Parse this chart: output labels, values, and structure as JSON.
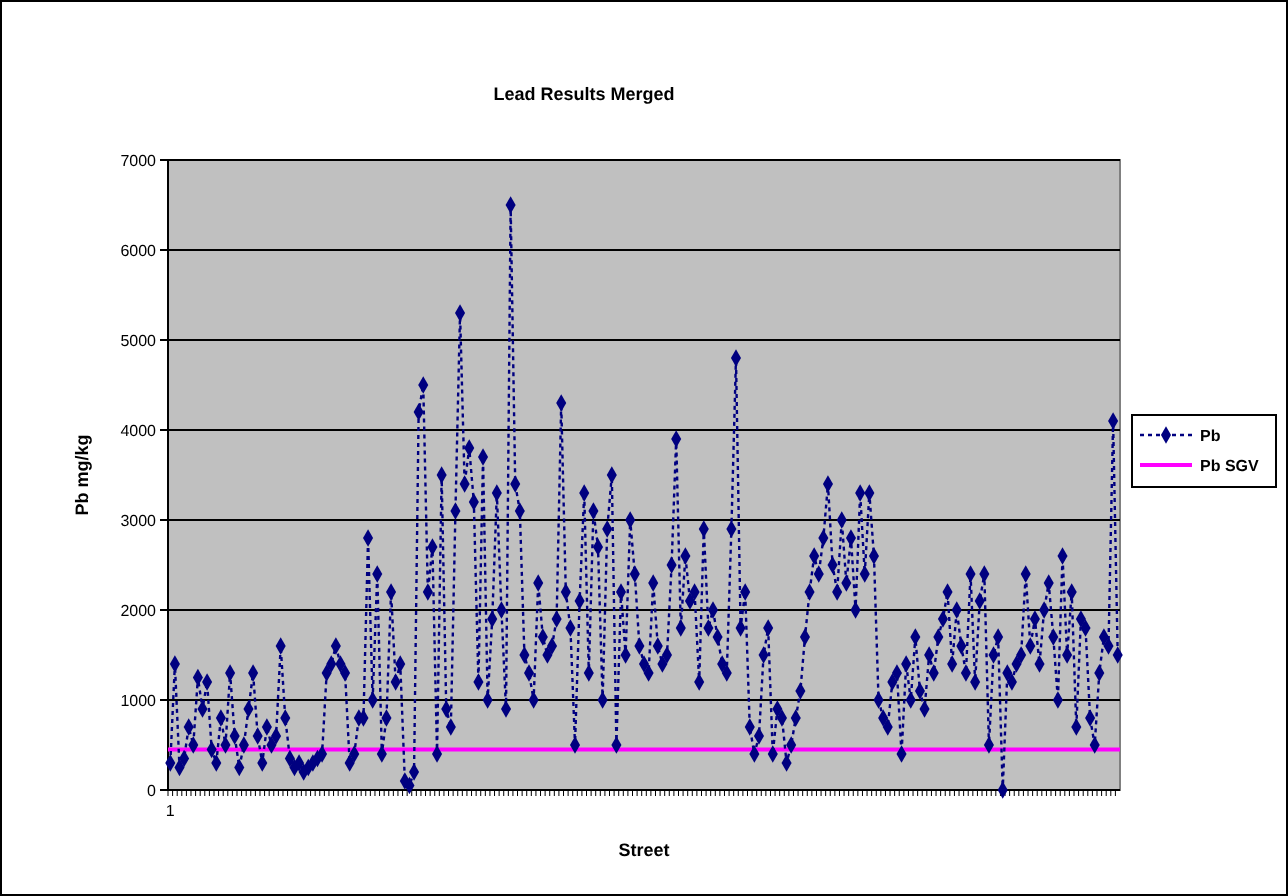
{
  "chart_data": {
    "type": "line",
    "title": "Lead Results Merged",
    "xlabel": "Street",
    "ylabel": "Pb mg/kg",
    "ylim": [
      0,
      7000
    ],
    "yticks": [
      0,
      1000,
      2000,
      3000,
      4000,
      5000,
      6000,
      7000
    ],
    "grid": "y",
    "legend": "right",
    "marker": "diamond",
    "line_style": "dotted",
    "categories": [
      "1",
      null,
      null,
      null,
      null,
      null,
      null,
      null,
      null,
      null,
      null,
      null,
      null,
      null,
      null,
      null,
      null,
      null,
      null,
      null,
      null,
      null,
      null,
      null,
      null,
      null,
      null,
      null,
      null,
      null,
      null,
      null,
      null,
      null,
      null,
      null,
      null,
      null,
      null,
      null,
      null,
      null,
      null,
      null,
      null,
      null,
      null,
      null,
      null,
      null,
      null,
      null,
      null,
      null,
      null,
      null,
      null,
      null,
      null,
      null,
      null,
      null,
      null,
      null,
      null,
      null,
      null,
      null,
      null,
      null,
      null,
      null,
      null,
      null,
      null,
      null,
      null,
      null,
      null,
      null,
      null,
      null,
      null,
      null,
      null,
      null,
      null,
      null,
      null,
      null,
      null,
      null,
      null,
      null,
      null,
      null,
      null,
      null,
      null,
      null,
      null,
      null,
      null,
      null,
      null,
      null,
      null,
      null,
      null,
      null,
      null,
      null,
      null,
      null,
      null,
      null,
      null,
      null,
      null,
      null,
      null,
      null,
      null,
      null,
      null,
      null,
      null,
      null,
      null,
      null,
      null,
      null,
      null,
      null,
      null,
      null,
      null,
      null,
      null,
      null,
      null,
      null,
      null,
      null,
      null,
      null,
      null,
      null,
      null,
      null,
      null,
      null,
      null,
      null,
      null,
      null,
      null,
      null,
      null,
      null,
      null,
      null,
      null,
      null,
      null,
      null,
      null,
      null,
      null,
      null,
      null,
      null,
      null,
      null,
      null,
      null,
      null,
      null,
      null,
      null,
      null,
      null,
      null,
      null,
      null,
      null,
      null,
      null,
      null,
      null,
      null,
      null,
      null,
      null,
      null,
      null,
      null,
      null,
      null,
      null,
      null,
      null,
      null,
      null,
      null,
      null,
      null
    ],
    "series": [
      {
        "name": "Pb",
        "color": "#000080",
        "values": [
          300,
          1400,
          250,
          350,
          700,
          500,
          1250,
          900,
          1200,
          450,
          300,
          800,
          500,
          1300,
          600,
          250,
          500,
          900,
          1300,
          600,
          300,
          700,
          500,
          600,
          1600,
          800,
          350,
          250,
          300,
          200,
          250,
          300,
          350,
          400,
          1300,
          1400,
          1600,
          1400,
          1300,
          300,
          400,
          800,
          800,
          2800,
          1000,
          2400,
          400,
          800,
          2200,
          1200,
          1400,
          100,
          50,
          200,
          4200,
          4500,
          2200,
          2700,
          400,
          3500,
          900,
          700,
          3100,
          5300,
          3400,
          3800,
          3200,
          1200,
          3700,
          1000,
          1900,
          3300,
          2000,
          900,
          6500,
          3400,
          3100,
          1500,
          1300,
          1000,
          2300,
          1700,
          1500,
          1600,
          1900,
          4300,
          2200,
          1800,
          500,
          2100,
          3300,
          1300,
          3100,
          2700,
          1000,
          2900,
          3500,
          500,
          2200,
          1500,
          3000,
          2400,
          1600,
          1400,
          1300,
          2300,
          1600,
          1400,
          1500,
          2500,
          3900,
          1800,
          2600,
          2100,
          2200,
          1200,
          2900,
          1800,
          2000,
          1700,
          1400,
          1300,
          2900,
          4800,
          1800,
          2200,
          700,
          400,
          600,
          1500,
          1800,
          400,
          900,
          800,
          300,
          500,
          800,
          1100,
          1700,
          2200,
          2600,
          2400,
          2800,
          3400,
          2500,
          2200,
          3000,
          2300,
          2800,
          2000,
          3300,
          2400,
          3300,
          2600,
          1000,
          800,
          700,
          1200,
          1300,
          400,
          1400,
          1000,
          1700,
          1100,
          900,
          1500,
          1300,
          1700,
          1900,
          2200,
          1400,
          2000,
          1600,
          1300,
          2400,
          1200,
          2100,
          2400,
          500,
          1500,
          1700,
          0,
          1300,
          1200,
          1400,
          1500,
          2400,
          1600,
          1900,
          1400,
          2000,
          2300,
          1700,
          1000,
          2600,
          1500,
          2200,
          700,
          1900,
          1800,
          800,
          500,
          1300,
          1700,
          1600,
          4100,
          1500
        ]
      }
    ],
    "ref_lines": [
      {
        "axis": "y",
        "value": 450,
        "label": "Pb SGV",
        "color": "#ff00ff",
        "line_style": "solid"
      }
    ]
  }
}
